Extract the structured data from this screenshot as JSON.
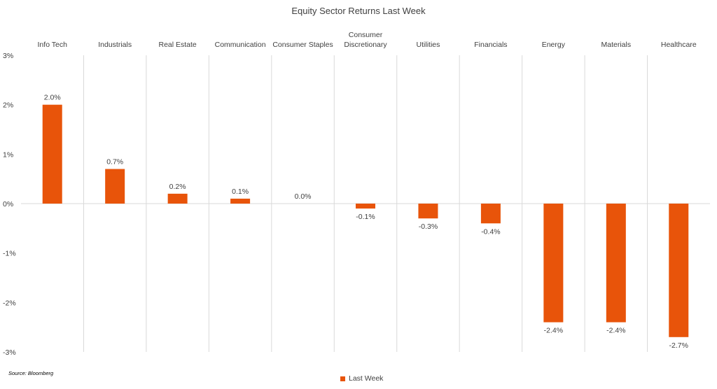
{
  "chart_data": {
    "type": "bar",
    "title": "Equity Sector Returns Last Week",
    "categories": [
      [
        "Info Tech"
      ],
      [
        "Industrials"
      ],
      [
        "Real Estate"
      ],
      [
        "Communication"
      ],
      [
        "Consumer Staples"
      ],
      [
        "Consumer",
        "Discretionary"
      ],
      [
        "Utilities"
      ],
      [
        "Financials"
      ],
      [
        "Energy"
      ],
      [
        "Materials"
      ],
      [
        "Healthcare"
      ]
    ],
    "series": [
      {
        "name": "Last Week",
        "color": "#E8540A",
        "values": [
          2.0,
          0.7,
          0.2,
          0.1,
          0.0,
          -0.1,
          -0.3,
          -0.4,
          -2.4,
          -2.4,
          -2.7
        ],
        "labels": [
          "2.0%",
          "0.7%",
          "0.2%",
          "0.1%",
          "0.0%",
          "-0.1%",
          "-0.3%",
          "-0.4%",
          "-2.4%",
          "-2.4%",
          "-2.7%"
        ]
      }
    ],
    "ylim": [
      -3,
      3
    ],
    "yticks": [
      3,
      2,
      1,
      0,
      -1,
      -2,
      -3
    ],
    "ytick_labels": [
      "3%",
      "2%",
      "1%",
      "0%",
      "-1%",
      "-2%",
      "-3%"
    ],
    "legend_position": "bottom",
    "gridlines": "vertical separators"
  },
  "source": "Source: Bloomberg",
  "legend_label": "Last Week"
}
